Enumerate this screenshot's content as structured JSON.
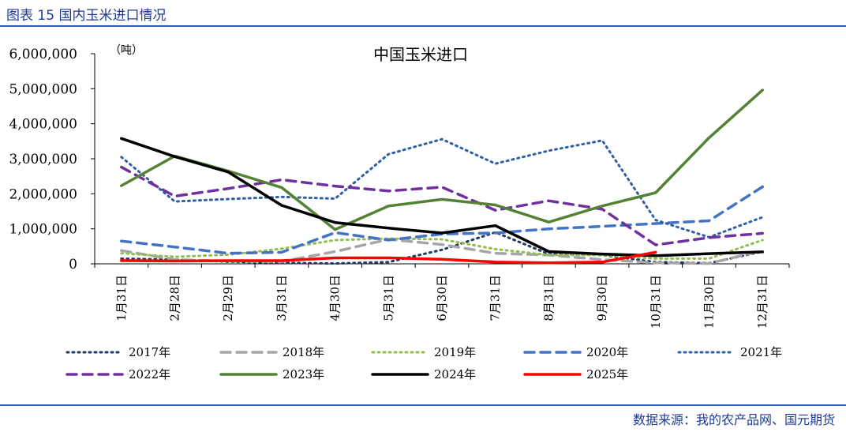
{
  "header": {
    "figure_title": "图表 15  国内玉米进口情况"
  },
  "footer": {
    "source": "数据来源：我的农产品网、国元期货"
  },
  "chart_data": {
    "type": "line",
    "title": "中国玉米进口",
    "unit_label": "（吨）",
    "ylim": [
      0,
      6000000
    ],
    "yticks": [
      0,
      1000000,
      2000000,
      3000000,
      4000000,
      5000000,
      6000000
    ],
    "ytick_labels": [
      "0",
      "1,000,000",
      "2,000,000",
      "3,000,000",
      "4,000,000",
      "5,000,000",
      "6,000,000"
    ],
    "categories": [
      "1月31日",
      "2月28日",
      "2月29日",
      "3月31日",
      "4月30日",
      "5月31日",
      "6月30日",
      "7月31日",
      "8月31日",
      "9月30日",
      "10月31日",
      "11月30日",
      "12月31日"
    ],
    "series": [
      {
        "name": "2017年",
        "color": "#1f3864",
        "style": "dotted",
        "width": 3,
        "values": [
          150000,
          120000,
          60000,
          30000,
          10000,
          50000,
          400000,
          900000,
          280000,
          250000,
          50000,
          20000,
          350000
        ]
      },
      {
        "name": "2018年",
        "color": "#a6a6a6",
        "style": "dashed",
        "width": 3.5,
        "values": [
          380000,
          120000,
          80000,
          60000,
          350000,
          700000,
          550000,
          300000,
          250000,
          120000,
          30000,
          10000,
          380000
        ]
      },
      {
        "name": "2019年",
        "color": "#92c050",
        "style": "dotted",
        "width": 3,
        "values": [
          300000,
          200000,
          260000,
          430000,
          680000,
          720000,
          700000,
          420000,
          250000,
          250000,
          150000,
          150000,
          680000
        ]
      },
      {
        "name": "2020年",
        "color": "#4472c4",
        "style": "dashed",
        "width": 3.5,
        "values": [
          650000,
          480000,
          300000,
          330000,
          890000,
          680000,
          850000,
          880000,
          1000000,
          1070000,
          1150000,
          1230000,
          2200000
        ]
      },
      {
        "name": "2021年",
        "color": "#2e5fa8",
        "style": "dotted",
        "width": 3,
        "values": [
          3050000,
          1780000,
          1850000,
          1910000,
          1860000,
          3130000,
          3560000,
          2860000,
          3230000,
          3520000,
          1250000,
          760000,
          1330000
        ]
      },
      {
        "name": "2022年",
        "color": "#7030a0",
        "style": "dashed",
        "width": 3.5,
        "values": [
          2760000,
          1930000,
          2150000,
          2400000,
          2220000,
          2080000,
          2190000,
          1530000,
          1800000,
          1560000,
          540000,
          750000,
          870000
        ]
      },
      {
        "name": "2023年",
        "color": "#548235",
        "style": "solid",
        "width": 3.5,
        "values": [
          2230000,
          3080000,
          2650000,
          2180000,
          980000,
          1650000,
          1840000,
          1680000,
          1190000,
          1650000,
          2030000,
          3600000,
          4960000
        ]
      },
      {
        "name": "2024年",
        "color": "#000000",
        "style": "solid",
        "width": 3.5,
        "values": [
          3580000,
          3060000,
          2620000,
          1670000,
          1180000,
          1020000,
          880000,
          1090000,
          350000,
          280000,
          230000,
          290000,
          340000
        ]
      },
      {
        "name": "2025年",
        "color": "#ff0000",
        "style": "solid",
        "width": 3.5,
        "values": [
          90000,
          80000,
          90000,
          90000,
          170000,
          170000,
          130000,
          50000,
          30000,
          50000,
          330000,
          null,
          null
        ]
      }
    ]
  }
}
